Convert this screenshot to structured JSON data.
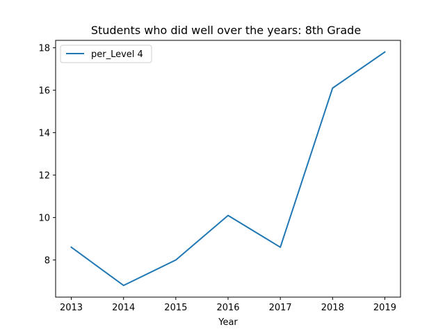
{
  "chart_data": {
    "type": "line",
    "title": "Students who did well over the years: 8th Grade",
    "xlabel": "Year",
    "ylabel": "",
    "x": [
      2013,
      2014,
      2015,
      2016,
      2017,
      2018,
      2019
    ],
    "x_ticks": [
      "2013",
      "2014",
      "2015",
      "2016",
      "2017",
      "2018",
      "2019"
    ],
    "y_ticks": [
      8,
      10,
      12,
      14,
      16,
      18
    ],
    "xlim": [
      2012.7,
      2019.3
    ],
    "ylim": [
      6.25,
      18.35
    ],
    "grid": false,
    "legend_position": "top-left",
    "series": [
      {
        "name": "per_Level 4",
        "color": "#1f77b4",
        "values": [
          8.6,
          6.8,
          8.0,
          10.1,
          8.6,
          16.1,
          17.8
        ]
      }
    ]
  }
}
